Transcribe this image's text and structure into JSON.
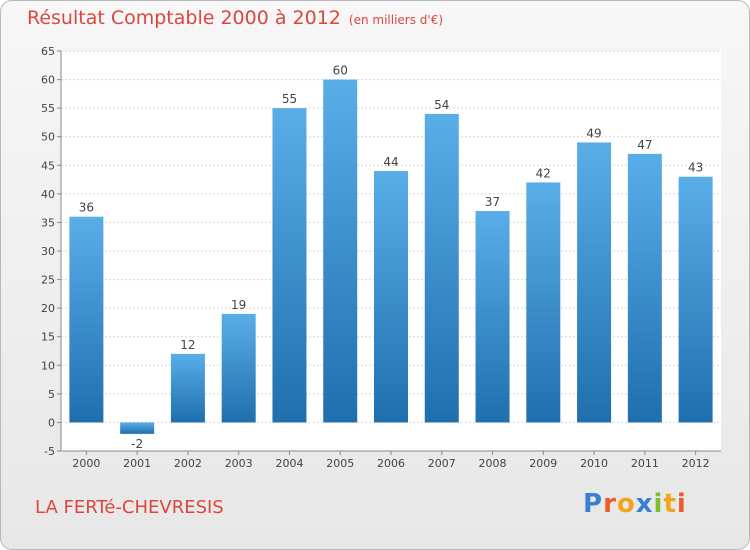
{
  "header": {
    "title": "Résultat Comptable 2000 à 2012",
    "subtitle": "(en milliers d'€)"
  },
  "footer": {
    "place": "LA FERTé-CHEVRESIS",
    "logo": "Proxiti"
  },
  "colors": {
    "title": "#d9473f",
    "bar_top": "#5aaee8",
    "bar_bottom": "#1f6fae",
    "grid": "#d6d6d6"
  },
  "chart_data": {
    "type": "bar",
    "title": "Résultat Comptable 2000 à 2012",
    "subtitle": "(en milliers d'€)",
    "categories": [
      "2000",
      "2001",
      "2002",
      "2003",
      "2004",
      "2005",
      "2006",
      "2007",
      "2008",
      "2009",
      "2010",
      "2011",
      "2012"
    ],
    "values": [
      36,
      -2,
      12,
      19,
      55,
      60,
      44,
      54,
      37,
      42,
      49,
      47,
      43
    ],
    "ylim": [
      -5,
      65
    ],
    "yticks": [
      -5,
      0,
      5,
      10,
      15,
      20,
      25,
      30,
      35,
      40,
      45,
      50,
      55,
      60,
      65
    ],
    "grid": true,
    "data_labels": true
  }
}
